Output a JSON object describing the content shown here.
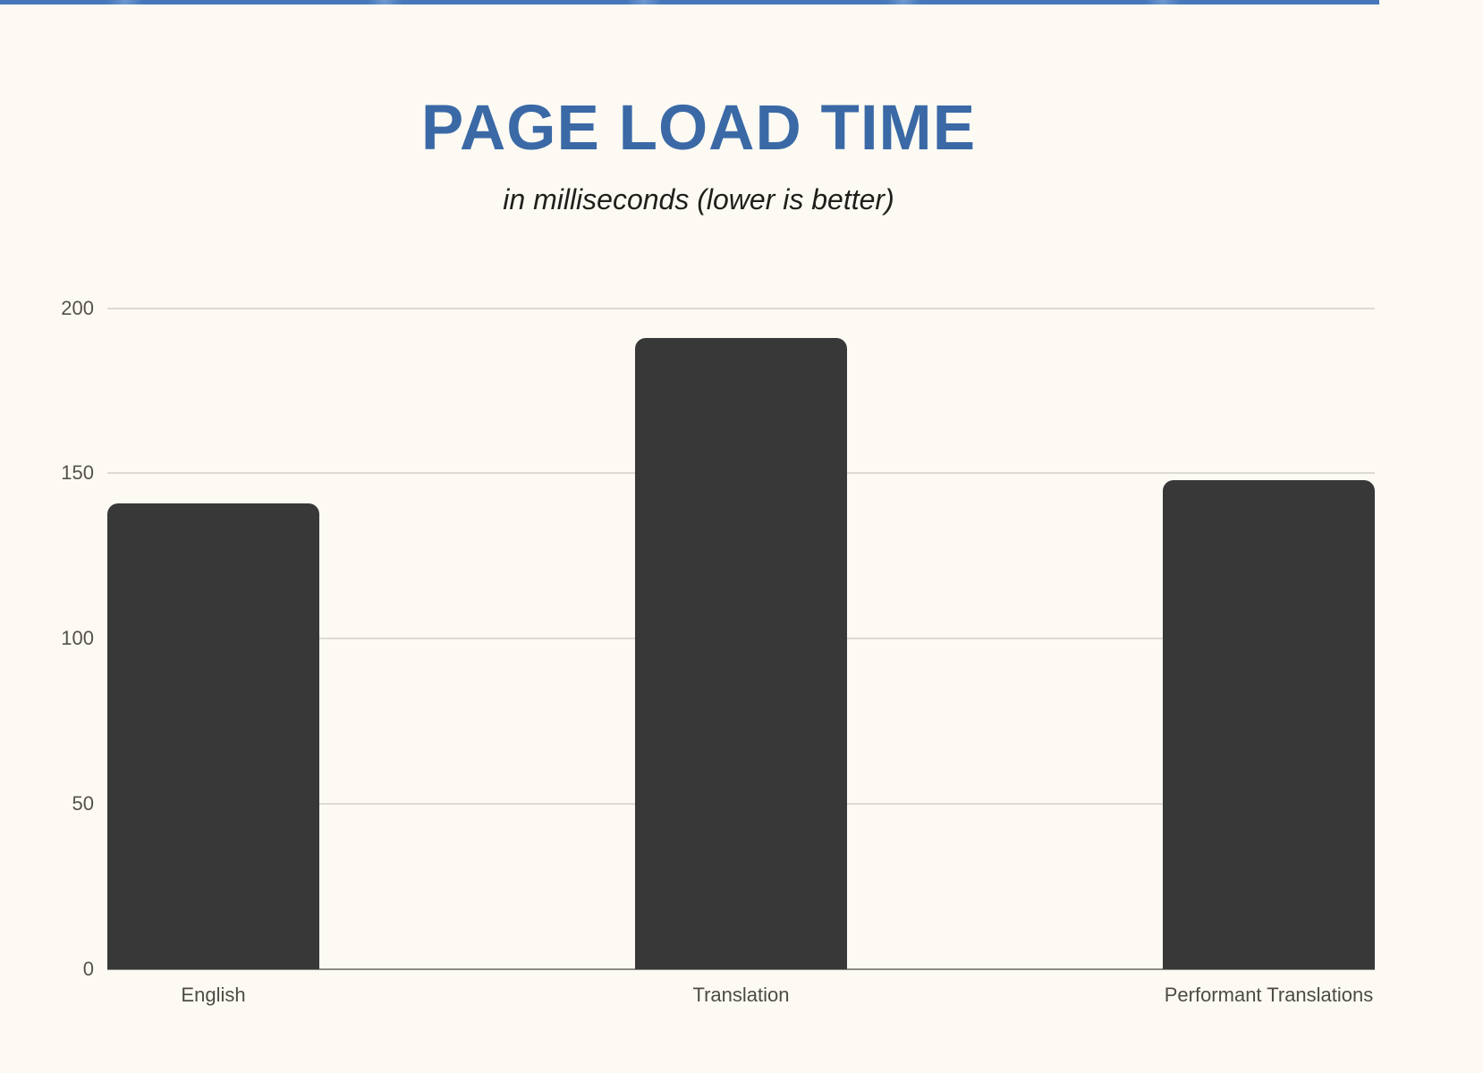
{
  "page": {
    "background_color": "#FCFAF3",
    "top_accent_color": "#4A7ABC"
  },
  "header": {
    "title": "PAGE LOAD TIME",
    "title_color": "#3A69A6",
    "subtitle": "in milliseconds (lower is better)",
    "subtitle_color": "#201F1B"
  },
  "chart_data": {
    "type": "bar",
    "title": "PAGE LOAD TIME",
    "subtitle": "in milliseconds (lower is better)",
    "categories": [
      "English",
      "Translation",
      "Performant Translations"
    ],
    "values": [
      141,
      191,
      148
    ],
    "xlabel": "",
    "ylabel": "",
    "ylim": [
      0,
      200
    ],
    "yticks": [
      0,
      50,
      100,
      150,
      200
    ],
    "grid": true,
    "legend": "none",
    "bar_color": "#383838",
    "gridline_color": "#DDDAD3",
    "axis_line_color": "#8C8C87",
    "tick_label_color": "#55524C"
  }
}
